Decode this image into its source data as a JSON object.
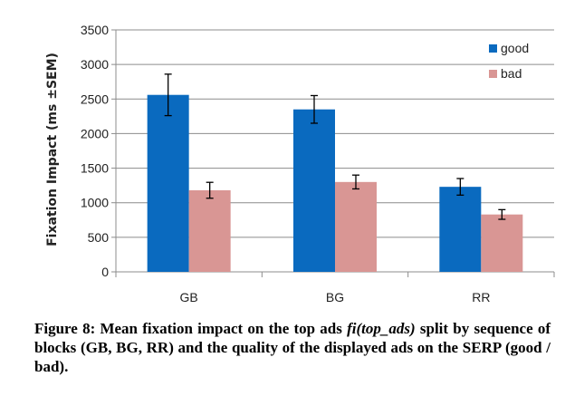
{
  "chart_data": {
    "type": "bar",
    "title": "",
    "xlabel": "",
    "ylabel": "Fixation Impact (ms ±SEM)",
    "categories": [
      "GB",
      "BG",
      "RR"
    ],
    "series": [
      {
        "name": "good",
        "values": [
          2560,
          2350,
          1230
        ],
        "errors": [
          300,
          200,
          120
        ],
        "color": "#0a6abf"
      },
      {
        "name": "bad",
        "values": [
          1180,
          1300,
          830
        ],
        "errors": [
          115,
          100,
          70
        ],
        "color": "#d99694"
      }
    ],
    "ylim": [
      0,
      3500
    ],
    "yticks": [
      0,
      500,
      1000,
      1500,
      2000,
      2500,
      3000,
      3500
    ],
    "grid": true,
    "legend_position": "top-right"
  },
  "caption": {
    "prefix": "Figure 8: Mean fixation impact on the top ads ",
    "emph": "fi(top_ads)",
    "suffix": " split by sequence of blocks (GB, BG, RR)  and the quality of the displayed ads on the SERP (good / bad)."
  }
}
